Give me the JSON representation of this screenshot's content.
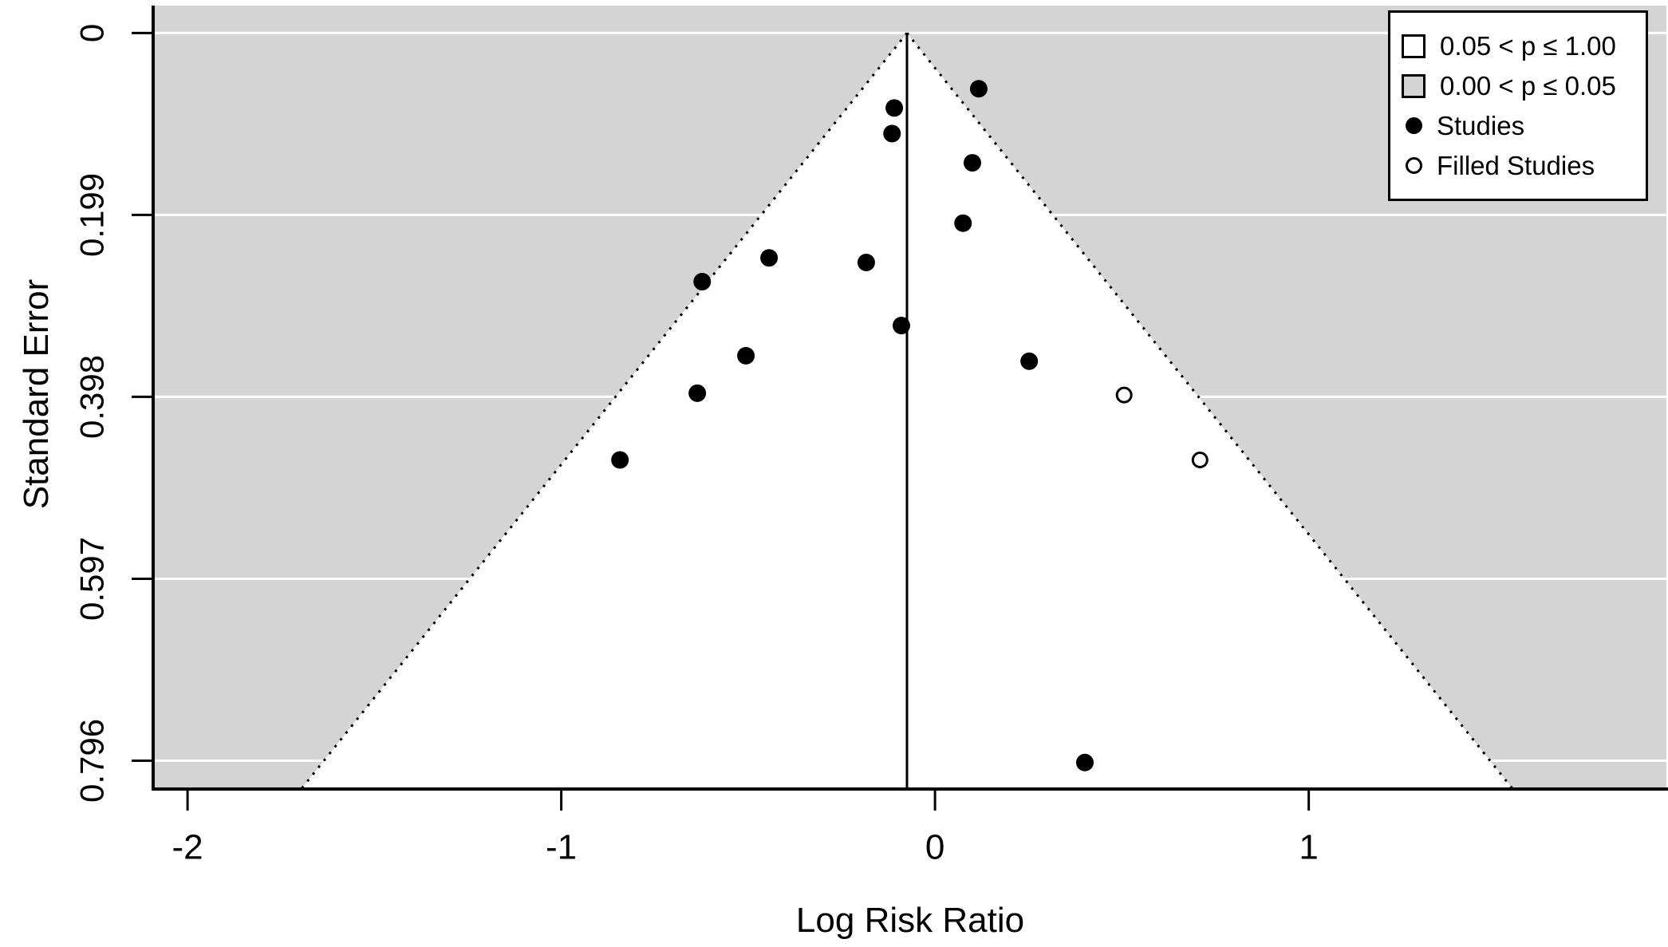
{
  "chart_data": {
    "type": "scatter",
    "subtype": "funnel-plot-trim-and-fill",
    "title": "",
    "xlabel": "Log Risk Ratio",
    "ylabel": "Standard Error",
    "xlim": [
      -2.092,
      1.957
    ],
    "ylim_se": [
      -0.03,
      0.827
    ],
    "y_axis_inverted": true,
    "grid": {
      "style": "horizontal-white-lines-at-y-ticks"
    },
    "x_ticks": [
      {
        "value": -2,
        "label": "-2"
      },
      {
        "value": -1,
        "label": "-1"
      },
      {
        "value": 0,
        "label": "0"
      },
      {
        "value": 1,
        "label": "1"
      }
    ],
    "y_ticks": [
      {
        "value": 0,
        "label": "0"
      },
      {
        "value": 0.199,
        "label": "0.199"
      },
      {
        "value": 0.398,
        "label": "0.398"
      },
      {
        "value": 0.597,
        "label": "0.597"
      },
      {
        "value": 0.796,
        "label": "0.796"
      }
    ],
    "funnel": {
      "center_estimate": -0.075,
      "ci_slope": 1.96,
      "apex_se": 0
    },
    "series": [
      {
        "name": "Studies",
        "marker": "filled-circle",
        "points": [
          [
            0.117,
            0.061
          ],
          [
            -0.109,
            0.082
          ],
          [
            -0.115,
            0.11
          ],
          [
            0.1,
            0.142
          ],
          [
            0.075,
            0.208
          ],
          [
            -0.444,
            0.246
          ],
          [
            -0.184,
            0.251
          ],
          [
            -0.623,
            0.272
          ],
          [
            -0.09,
            0.32
          ],
          [
            -0.506,
            0.353
          ],
          [
            0.252,
            0.359
          ],
          [
            -0.636,
            0.394
          ],
          [
            -0.843,
            0.467
          ],
          [
            0.401,
            0.798
          ]
        ]
      },
      {
        "name": "Filled Studies",
        "marker": "open-circle",
        "points": [
          [
            0.506,
            0.396
          ],
          [
            0.709,
            0.467
          ]
        ]
      }
    ],
    "legend": {
      "position": "top-right",
      "items": [
        {
          "swatch": "white-square",
          "label": "0.05 < p ≤ 1.00"
        },
        {
          "swatch": "gray-square",
          "label": "0.00 < p ≤ 0.05"
        },
        {
          "swatch": "filled-circle",
          "label": "Studies"
        },
        {
          "swatch": "open-circle",
          "label": "Filled Studies"
        }
      ]
    },
    "colors": {
      "significance_shade": "#d4d4d4",
      "background": "#ffffff",
      "foreground": "#000000",
      "gridline": "#ffffff"
    }
  }
}
